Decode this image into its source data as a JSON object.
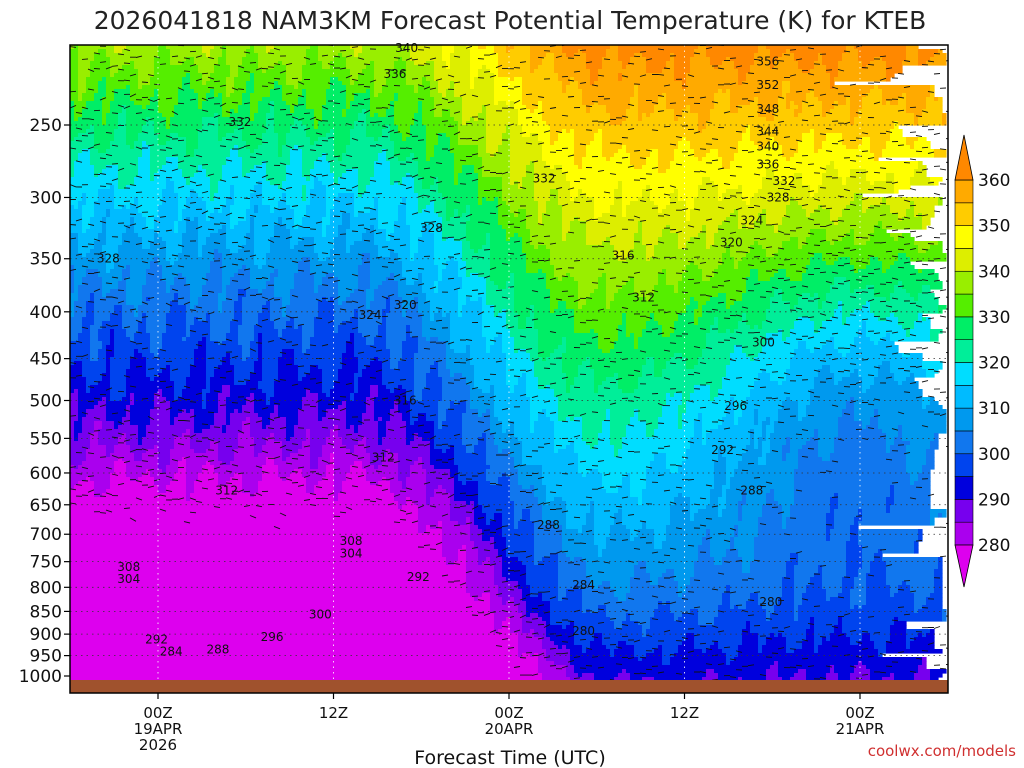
{
  "chart_data": {
    "type": "heatmap",
    "title": "2026041818 NAM3KM Forecast Potential Temperature (K) for KTEB",
    "xlabel": "Forecast Time (UTC)",
    "ylabel": "",
    "credit": "coolwx.com/models",
    "x_unit": "forecast hours from 2026041818",
    "xlim": [
      0,
      60
    ],
    "x_ticks": [
      {
        "hour": 6,
        "lines": [
          "00Z",
          "19APR",
          "2026"
        ]
      },
      {
        "hour": 18,
        "lines": [
          "12Z"
        ]
      },
      {
        "hour": 30,
        "lines": [
          "00Z",
          "20APR"
        ]
      },
      {
        "hour": 42,
        "lines": [
          "12Z"
        ]
      },
      {
        "hour": 54,
        "lines": [
          "00Z",
          "21APR"
        ]
      }
    ],
    "y_unit": "hPa",
    "y_ticks": [
      250,
      300,
      350,
      400,
      450,
      500,
      550,
      600,
      650,
      700,
      750,
      800,
      850,
      900,
      950,
      1000
    ],
    "ylim": [
      1000,
      200
    ],
    "colorbar": {
      "ticks": [
        360,
        350,
        340,
        330,
        320,
        310,
        300,
        290,
        280
      ],
      "bands": [
        {
          "from": 275,
          "to": 280,
          "color": "#dd00ee"
        },
        {
          "from": 280,
          "to": 285,
          "color": "#aa00ee"
        },
        {
          "from": 285,
          "to": 290,
          "color": "#7700ee"
        },
        {
          "from": 290,
          "to": 295,
          "color": "#0000dd"
        },
        {
          "from": 295,
          "to": 300,
          "color": "#0044ee"
        },
        {
          "from": 300,
          "to": 305,
          "color": "#1177ee"
        },
        {
          "from": 305,
          "to": 310,
          "color": "#0099ee"
        },
        {
          "from": 310,
          "to": 315,
          "color": "#00bbff"
        },
        {
          "from": 315,
          "to": 320,
          "color": "#00ddff"
        },
        {
          "from": 320,
          "to": 325,
          "color": "#00ee99"
        },
        {
          "from": 325,
          "to": 330,
          "color": "#00ee66"
        },
        {
          "from": 330,
          "to": 335,
          "color": "#55ee00"
        },
        {
          "from": 335,
          "to": 340,
          "color": "#99ee00"
        },
        {
          "from": 340,
          "to": 345,
          "color": "#ddee00"
        },
        {
          "from": 345,
          "to": 350,
          "color": "#ffff00"
        },
        {
          "from": 350,
          "to": 355,
          "color": "#ffcc00"
        },
        {
          "from": 355,
          "to": 360,
          "color": "#ffaa00"
        },
        {
          "from": 360,
          "to": 365,
          "color": "#ff8800"
        }
      ]
    },
    "contour_interval": 4,
    "contour_labels": [
      {
        "value": "340",
        "hour": 23.0,
        "p": 206
      },
      {
        "value": "336",
        "hour": 22.2,
        "p": 220
      },
      {
        "value": "356",
        "hour": 47.7,
        "p": 213
      },
      {
        "value": "352",
        "hour": 47.7,
        "p": 226
      },
      {
        "value": "348",
        "hour": 47.7,
        "p": 240
      },
      {
        "value": "344",
        "hour": 47.7,
        "p": 254
      },
      {
        "value": "340",
        "hour": 47.7,
        "p": 264
      },
      {
        "value": "336",
        "hour": 47.7,
        "p": 276
      },
      {
        "value": "332",
        "hour": 48.8,
        "p": 288
      },
      {
        "value": "332",
        "hour": 11.6,
        "p": 248
      },
      {
        "value": "332",
        "hour": 32.4,
        "p": 286
      },
      {
        "value": "328",
        "hour": 48.4,
        "p": 300
      },
      {
        "value": "328",
        "hour": 24.7,
        "p": 324
      },
      {
        "value": "328",
        "hour": 2.6,
        "p": 350
      },
      {
        "value": "324",
        "hour": 46.6,
        "p": 318
      },
      {
        "value": "324",
        "hour": 20.5,
        "p": 403
      },
      {
        "value": "320",
        "hour": 45.2,
        "p": 336
      },
      {
        "value": "320",
        "hour": 22.9,
        "p": 393
      },
      {
        "value": "316",
        "hour": 37.8,
        "p": 347
      },
      {
        "value": "316",
        "hour": 22.9,
        "p": 500
      },
      {
        "value": "312",
        "hour": 39.2,
        "p": 386
      },
      {
        "value": "312",
        "hour": 21.4,
        "p": 577
      },
      {
        "value": "312",
        "hour": 10.7,
        "p": 627
      },
      {
        "value": "308",
        "hour": 19.2,
        "p": 712
      },
      {
        "value": "308",
        "hour": 4.0,
        "p": 760
      },
      {
        "value": "304",
        "hour": 19.2,
        "p": 735
      },
      {
        "value": "304",
        "hour": 4.0,
        "p": 783
      },
      {
        "value": "300",
        "hour": 47.4,
        "p": 432
      },
      {
        "value": "300",
        "hour": 17.1,
        "p": 857
      },
      {
        "value": "296",
        "hour": 45.5,
        "p": 507
      },
      {
        "value": "296",
        "hour": 13.8,
        "p": 907
      },
      {
        "value": "292",
        "hour": 44.6,
        "p": 566
      },
      {
        "value": "292",
        "hour": 23.8,
        "p": 780
      },
      {
        "value": "292",
        "hour": 5.9,
        "p": 912
      },
      {
        "value": "288",
        "hour": 46.6,
        "p": 627
      },
      {
        "value": "288",
        "hour": 32.7,
        "p": 684
      },
      {
        "value": "288",
        "hour": 10.1,
        "p": 935
      },
      {
        "value": "284",
        "hour": 6.9,
        "p": 940
      },
      {
        "value": "284",
        "hour": 35.1,
        "p": 795
      },
      {
        "value": "280",
        "hour": 47.9,
        "p": 830
      },
      {
        "value": "280",
        "hour": 35.1,
        "p": 893
      }
    ]
  }
}
